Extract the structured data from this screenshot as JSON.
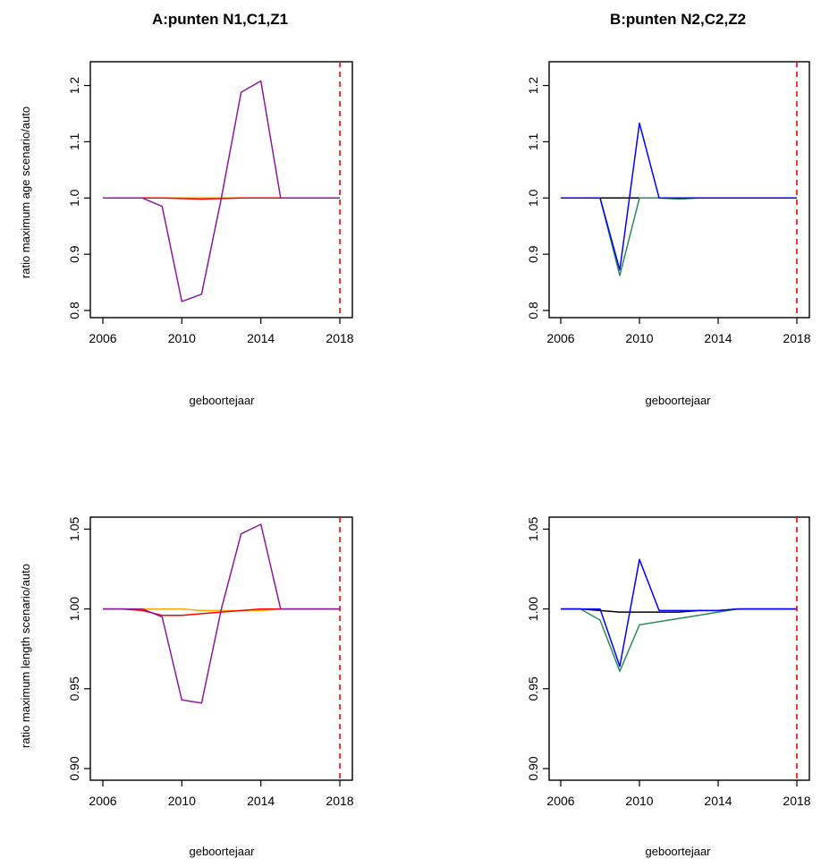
{
  "chart_data": [
    {
      "type": "line",
      "title": "A:punten N1,C1,Z1",
      "xlabel": "geboortejaar",
      "ylabel": "ratio maximum age scenario/auto",
      "xlim": [
        2006,
        2018
      ],
      "ylim": [
        0.8,
        1.22
      ],
      "xticks": [
        "2006",
        "2010",
        "2014",
        "2018"
      ],
      "yticks": [
        "0.8",
        "0.9",
        "1.0",
        "1.1",
        "1.2"
      ],
      "vline": {
        "x": 2018,
        "color": "#ff0000"
      },
      "series": [
        {
          "color": "#ffa500",
          "x": [
            2006,
            2007,
            2008,
            2009,
            2010,
            2011,
            2012,
            2013,
            2014,
            2015,
            2016,
            2017,
            2018
          ],
          "y": [
            1.0,
            1.0,
            1.0,
            1.0,
            1.0,
            1.0,
            1.0,
            1.0,
            1.0,
            1.0,
            1.0,
            1.0,
            1.0
          ]
        },
        {
          "color": "#ff0000",
          "x": [
            2006,
            2007,
            2008,
            2009,
            2010,
            2011,
            2012,
            2013,
            2014,
            2015,
            2016,
            2017,
            2018
          ],
          "y": [
            1.0,
            1.0,
            1.0,
            1.0,
            0.999,
            0.998,
            0.999,
            1.0,
            1.0,
            1.0,
            1.0,
            1.0,
            1.0
          ]
        },
        {
          "color": "#8b1a9b",
          "x": [
            2006,
            2007,
            2008,
            2009,
            2010,
            2011,
            2012,
            2013,
            2014,
            2015,
            2016,
            2017,
            2018
          ],
          "y": [
            1.0,
            1.0,
            1.0,
            0.985,
            0.816,
            0.829,
            1.0,
            1.188,
            1.208,
            1.0,
            1.0,
            1.0,
            1.0
          ]
        }
      ]
    },
    {
      "type": "line",
      "title": "B:punten N2,C2,Z2",
      "xlabel": "geboortejaar",
      "ylabel": "",
      "xlim": [
        2006,
        2018
      ],
      "ylim": [
        0.8,
        1.22
      ],
      "xticks": [
        "2006",
        "2010",
        "2014",
        "2018"
      ],
      "yticks": [
        "0.8",
        "0.9",
        "1.0",
        "1.1",
        "1.2"
      ],
      "vline": {
        "x": 2018,
        "color": "#ff0000"
      },
      "series": [
        {
          "color": "#000000",
          "x": [
            2006,
            2007,
            2008,
            2009,
            2010,
            2011,
            2012,
            2013,
            2014,
            2015,
            2016,
            2017,
            2018
          ],
          "y": [
            1.0,
            1.0,
            1.0,
            1.0,
            1.0,
            1.0,
            1.0,
            1.0,
            1.0,
            1.0,
            1.0,
            1.0,
            1.0
          ]
        },
        {
          "color": "#2e8b57",
          "x": [
            2006,
            2007,
            2008,
            2009,
            2010,
            2011,
            2012,
            2013,
            2014,
            2015,
            2016,
            2017,
            2018
          ],
          "y": [
            1.0,
            1.0,
            1.0,
            0.862,
            1.0,
            1.0,
            0.998,
            1.0,
            1.0,
            1.0,
            1.0,
            1.0,
            1.0
          ]
        },
        {
          "color": "#0000ff",
          "x": [
            2006,
            2007,
            2008,
            2009,
            2010,
            2011,
            2012,
            2013,
            2014,
            2015,
            2016,
            2017,
            2018
          ],
          "y": [
            1.0,
            1.0,
            1.0,
            0.872,
            1.133,
            1.0,
            1.0,
            1.0,
            1.0,
            1.0,
            1.0,
            1.0,
            1.0
          ]
        }
      ]
    },
    {
      "type": "line",
      "title": "",
      "xlabel": "geboortejaar",
      "ylabel": "ratio maximum length scenario/auto",
      "xlim": [
        2006,
        2018
      ],
      "ylim": [
        0.9,
        1.053
      ],
      "xticks": [
        "2006",
        "2010",
        "2014",
        "2018"
      ],
      "yticks": [
        "0.90",
        "0.95",
        "1.00",
        "1.05"
      ],
      "vline": {
        "x": 2018,
        "color": "#ff0000"
      },
      "series": [
        {
          "color": "#ffa500",
          "x": [
            2006,
            2007,
            2008,
            2009,
            2010,
            2011,
            2012,
            2013,
            2014,
            2015,
            2016,
            2017,
            2018
          ],
          "y": [
            1.0,
            1.0,
            1.0,
            1.0,
            1.0,
            0.999,
            0.999,
            0.999,
            0.999,
            1.0,
            1.0,
            1.0,
            1.0
          ]
        },
        {
          "color": "#ff0000",
          "x": [
            2006,
            2007,
            2008,
            2009,
            2010,
            2011,
            2012,
            2013,
            2014,
            2015,
            2016,
            2017,
            2018
          ],
          "y": [
            1.0,
            1.0,
            0.999,
            0.996,
            0.996,
            0.997,
            0.998,
            0.999,
            1.0,
            1.0,
            1.0,
            1.0,
            1.0
          ]
        },
        {
          "color": "#8b1a9b",
          "x": [
            2006,
            2007,
            2008,
            2009,
            2010,
            2011,
            2012,
            2013,
            2014,
            2015,
            2016,
            2017,
            2018
          ],
          "y": [
            1.0,
            1.0,
            1.0,
            0.995,
            0.943,
            0.941,
            1.0,
            1.047,
            1.053,
            1.0,
            1.0,
            1.0,
            1.0
          ]
        }
      ]
    },
    {
      "type": "line",
      "title": "",
      "xlabel": "geboortejaar",
      "ylabel": "",
      "xlim": [
        2006,
        2018
      ],
      "ylim": [
        0.9,
        1.053
      ],
      "xticks": [
        "2006",
        "2010",
        "2014",
        "2018"
      ],
      "yticks": [
        "0.90",
        "0.95",
        "1.00",
        "1.05"
      ],
      "vline": {
        "x": 2018,
        "color": "#ff0000"
      },
      "series": [
        {
          "color": "#000000",
          "x": [
            2006,
            2007,
            2008,
            2009,
            2010,
            2011,
            2012,
            2013,
            2014,
            2015,
            2016,
            2017,
            2018
          ],
          "y": [
            1.0,
            1.0,
            0.999,
            0.998,
            0.998,
            0.998,
            0.998,
            0.999,
            0.999,
            1.0,
            1.0,
            1.0,
            1.0
          ]
        },
        {
          "color": "#2e8b57",
          "x": [
            2006,
            2007,
            2008,
            2009,
            2010,
            2011,
            2012,
            2013,
            2014,
            2015,
            2016,
            2017,
            2018
          ],
          "y": [
            1.0,
            1.0,
            0.993,
            0.961,
            0.99,
            0.992,
            0.994,
            0.996,
            0.998,
            1.0,
            1.0,
            1.0,
            1.0
          ]
        },
        {
          "color": "#0000ff",
          "x": [
            2006,
            2007,
            2008,
            2009,
            2010,
            2011,
            2012,
            2013,
            2014,
            2015,
            2016,
            2017,
            2018
          ],
          "y": [
            1.0,
            1.0,
            1.0,
            0.964,
            1.031,
            0.999,
            0.999,
            0.999,
            0.999,
            1.0,
            1.0,
            1.0,
            1.0
          ]
        }
      ]
    }
  ]
}
